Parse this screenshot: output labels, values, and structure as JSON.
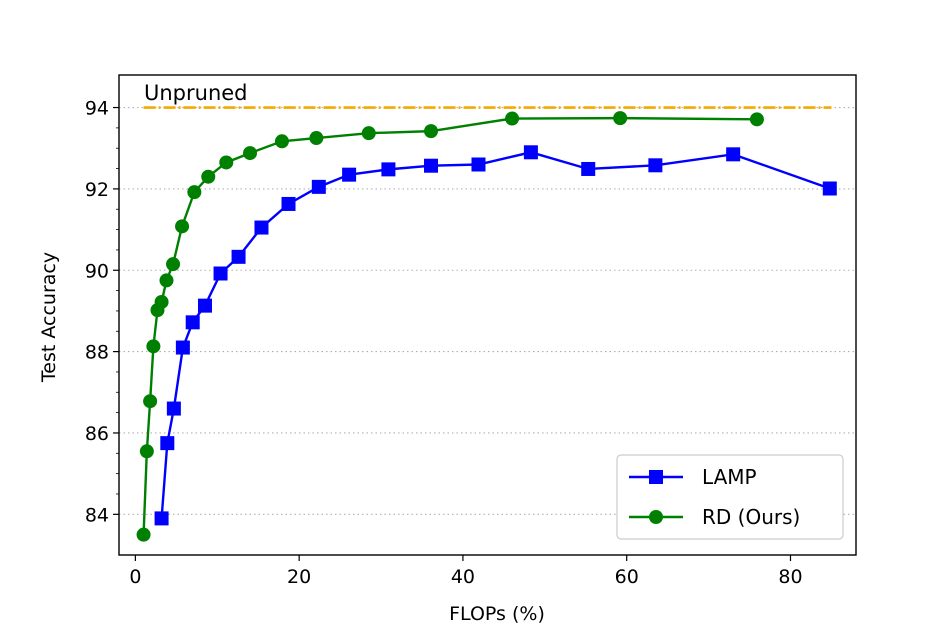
{
  "chart_data": {
    "type": "line",
    "xlabel": "FLOPs (%)",
    "ylabel": "Test Accuracy",
    "xlim": [
      -2,
      88
    ],
    "ylim": [
      83,
      94.8
    ],
    "xticks": [
      0,
      20,
      40,
      60,
      80
    ],
    "yticks": [
      84,
      86,
      88,
      90,
      92,
      94
    ],
    "grid": "horizontal dotted",
    "legend_position": "bottom-right",
    "annotation": {
      "text": "Unpruned",
      "y": 94.0
    },
    "reference_line": {
      "y": 94.0,
      "x": [
        1,
        85
      ],
      "color": "#F5A800"
    },
    "series": [
      {
        "name": "LAMP",
        "color": "#0000FF",
        "marker": "square",
        "x": [
          3.2,
          3.9,
          4.7,
          5.8,
          7.0,
          8.5,
          10.4,
          12.6,
          15.4,
          18.7,
          22.4,
          26.1,
          30.9,
          36.1,
          41.9,
          48.3,
          55.3,
          63.5,
          73.0,
          84.8
        ],
        "y": [
          83.9,
          85.75,
          86.6,
          88.1,
          88.72,
          89.13,
          89.92,
          90.33,
          91.05,
          91.63,
          92.05,
          92.35,
          92.48,
          92.57,
          92.6,
          92.9,
          92.49,
          92.58,
          92.85,
          92.01
        ]
      },
      {
        "name": "RD (Ours)",
        "color": "#008000",
        "marker": "circle",
        "x": [
          1.0,
          1.4,
          1.8,
          2.2,
          2.7,
          3.2,
          3.8,
          4.6,
          5.7,
          7.2,
          8.9,
          11.1,
          14.0,
          17.9,
          22.1,
          28.5,
          36.1,
          46.0,
          59.2,
          75.9
        ],
        "y": [
          83.5,
          85.55,
          86.78,
          88.13,
          89.02,
          89.22,
          89.75,
          90.15,
          91.08,
          91.92,
          92.3,
          92.65,
          92.88,
          93.17,
          93.25,
          93.37,
          93.42,
          93.73,
          93.74,
          93.71
        ]
      }
    ]
  }
}
